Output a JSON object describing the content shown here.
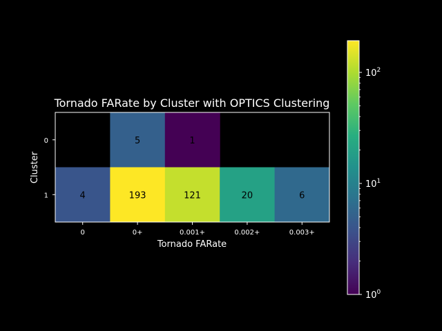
{
  "chart_data": {
    "type": "heatmap",
    "title": "Tornado FARate by Cluster with OPTICS Clustering",
    "xlabel": "Tornado FARate",
    "ylabel": "Cluster",
    "x_categories": [
      "0",
      "0+",
      "0.001+",
      "0.002+",
      "0.003+"
    ],
    "y_categories": [
      "0",
      "1"
    ],
    "values": [
      [
        null,
        5,
        1,
        null,
        null
      ],
      [
        4,
        193,
        121,
        20,
        6
      ]
    ],
    "colorbar": {
      "scale": "log",
      "range": [
        1,
        193
      ],
      "ticks": [
        {
          "value": 1,
          "base": "10",
          "exp": "0"
        },
        {
          "value": 10,
          "base": "10",
          "exp": "1"
        },
        {
          "value": 100,
          "base": "10",
          "exp": "2"
        }
      ],
      "colormap": "viridis"
    },
    "background": "#000000"
  }
}
